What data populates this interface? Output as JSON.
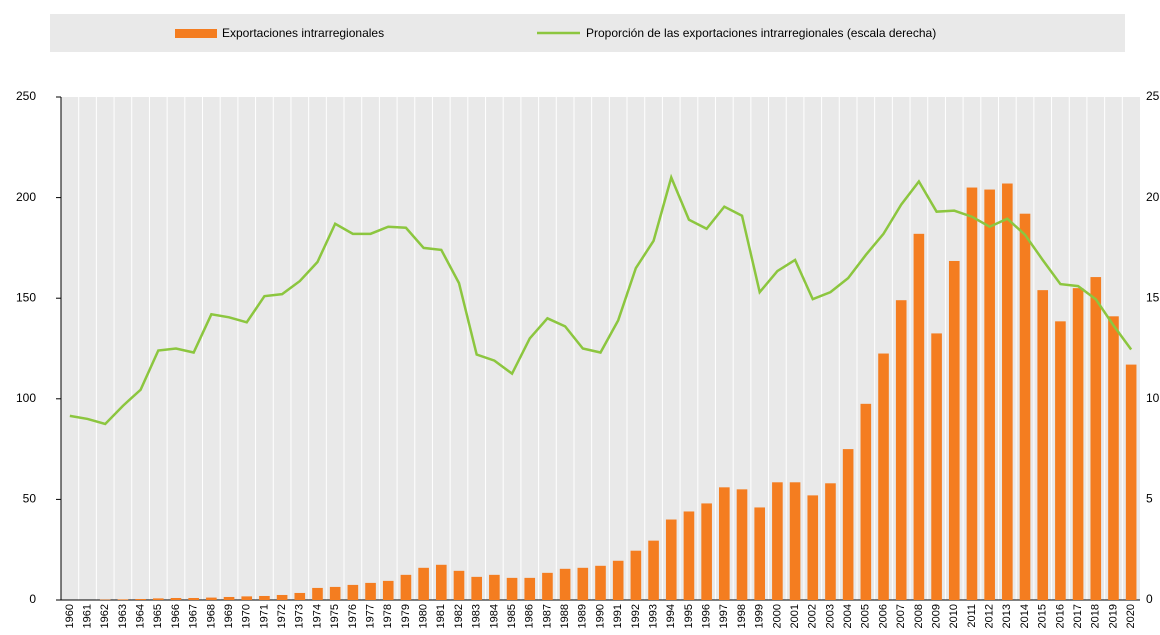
{
  "chart_data": {
    "type": "bar",
    "categories": [
      "1960",
      "1961",
      "1962",
      "1963",
      "1964",
      "1965",
      "1966",
      "1967",
      "1968",
      "1969",
      "1970",
      "1971",
      "1972",
      "1973",
      "1974",
      "1975",
      "1976",
      "1977",
      "1978",
      "1979",
      "1980",
      "1981",
      "1982",
      "1983",
      "1984",
      "1985",
      "1986",
      "1987",
      "1988",
      "1989",
      "1990",
      "1991",
      "1992",
      "1993",
      "1994",
      "1995",
      "1996",
      "1997",
      "1998",
      "1999",
      "2000",
      "2001",
      "2002",
      "2003",
      "2004",
      "2005",
      "2006",
      "2007",
      "2008",
      "2009",
      "2010",
      "2011",
      "2012",
      "2013",
      "2014",
      "2015",
      "2016",
      "2017",
      "2018",
      "2019",
      "2020"
    ],
    "series": [
      {
        "name": "Exportaciones intrarregionales",
        "type": "bar",
        "color": "#f47d20",
        "values": [
          0,
          0,
          0.2,
          0.3,
          0.5,
          0.8,
          1,
          1,
          1.2,
          1.5,
          1.8,
          2,
          2.5,
          3.5,
          6,
          6.5,
          7.5,
          8.5,
          9.5,
          12.5,
          16,
          17.5,
          14.5,
          11.5,
          12.5,
          11,
          11,
          13.5,
          15.5,
          16,
          17,
          19.5,
          24.5,
          29.5,
          40,
          44,
          48,
          56,
          55,
          46,
          58.5,
          58.5,
          52,
          58,
          75,
          97.5,
          122.5,
          149,
          182,
          132.5,
          168.5,
          205,
          204,
          207,
          192,
          154,
          138.5,
          155,
          160.5,
          141,
          117
        ]
      },
      {
        "name": "Proporción de las exportaciones intrarregionales (escala derecha)",
        "type": "line",
        "axis": "y2",
        "color": "#8cc63f",
        "values": [
          9.15,
          9.0,
          8.75,
          9.65,
          10.45,
          12.4,
          12.5,
          12.3,
          14.2,
          14.05,
          13.8,
          15.1,
          15.2,
          15.85,
          16.8,
          18.7,
          18.2,
          18.2,
          18.55,
          18.5,
          17.5,
          17.4,
          15.75,
          12.2,
          11.9,
          11.25,
          13.0,
          14.0,
          13.6,
          12.5,
          12.3,
          13.9,
          16.5,
          17.85,
          21.0,
          18.9,
          18.45,
          19.55,
          19.1,
          15.3,
          16.35,
          16.9,
          14.95,
          15.3,
          16.0,
          17.15,
          18.2,
          19.65,
          20.8,
          19.3,
          19.35,
          19.05,
          18.55,
          18.95,
          18.15,
          16.9,
          15.7,
          15.6,
          14.95,
          13.65,
          12.45
        ]
      }
    ],
    "ylim": [
      0,
      250
    ],
    "yticks": [
      0,
      50,
      100,
      150,
      200,
      250
    ],
    "y2lim": [
      0,
      25
    ],
    "y2ticks": [
      0,
      5,
      10,
      15,
      20,
      25
    ],
    "grid": true,
    "legend": "top"
  }
}
